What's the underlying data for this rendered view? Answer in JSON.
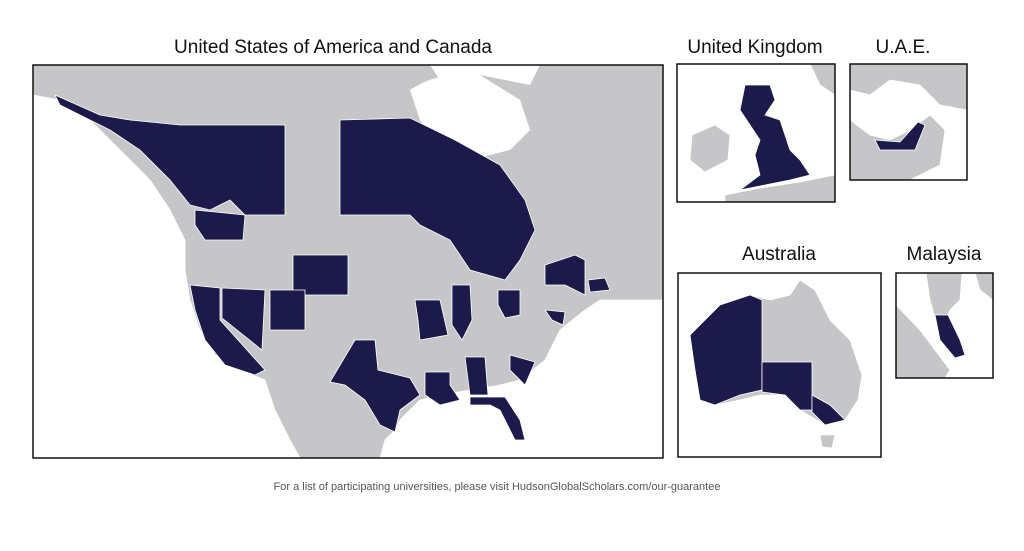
{
  "panels": [
    {
      "title": "United States of America and Canada"
    },
    {
      "title": "United Kingdom"
    },
    {
      "title": "U.A.E."
    },
    {
      "title": "Australia"
    },
    {
      "title": "Malaysia"
    }
  ],
  "footer": "For a list of participating universities, please visit HudsonGlobalScholars.com/our-guarantee"
}
